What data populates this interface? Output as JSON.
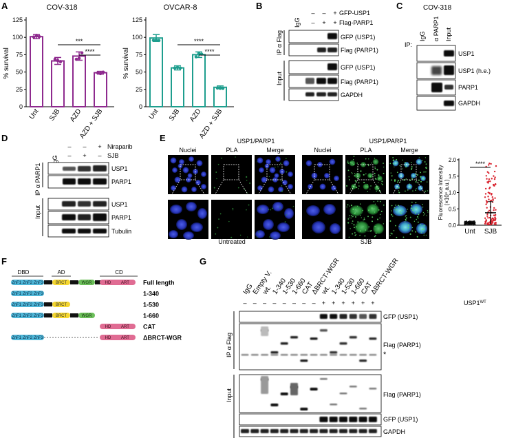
{
  "panels": {
    "A": "A",
    "B": "B",
    "C": "C",
    "D": "D",
    "E": "E",
    "F": "F",
    "G": "G"
  },
  "panelA": {
    "charts": [
      {
        "title": "COV-318",
        "ylabel": "% survival",
        "color": "#8e2a8e",
        "categories": [
          "Unt",
          "SJB",
          "AZD",
          "AZD + SJB"
        ],
        "values": [
          101,
          66,
          73,
          49
        ],
        "errors": [
          3,
          5,
          6,
          2
        ],
        "sig": [
          {
            "text": "***",
            "from": 1,
            "to": 3
          },
          {
            "text": "****",
            "from": 2,
            "to": 3
          }
        ]
      },
      {
        "title": "OVCAR-8",
        "ylabel": "% survival",
        "color": "#1e9e8e",
        "categories": [
          "Unt",
          "SJB",
          "AZD",
          "AZD + SJB"
        ],
        "values": [
          99,
          56,
          75,
          28
        ],
        "errors": [
          5,
          3,
          4,
          2
        ],
        "sig": [
          {
            "text": "****",
            "from": 1,
            "to": 3
          },
          {
            "text": "****",
            "from": 2,
            "to": 3
          }
        ]
      }
    ],
    "ticks": [
      "0",
      "25",
      "50",
      "75",
      "100",
      "125"
    ]
  },
  "panelB": {
    "igg": "IgG",
    "rows": [
      {
        "label": "GFP-USP1",
        "signs": [
          "–",
          "–",
          "+"
        ]
      },
      {
        "label": "Flag-PARP1",
        "signs": [
          "–",
          "+",
          "+"
        ]
      }
    ],
    "ip_label": "IP α Flag",
    "input_label": "Input",
    "ip_blots": [
      "GFP (USP1)",
      "Flag (PARP1)"
    ],
    "input_blots": [
      "GFP (USP1)",
      "Flag (PARP1)",
      "GAPDH"
    ]
  },
  "panelC": {
    "title": "COV-318",
    "ip": "IP:",
    "lanes": [
      "IgG",
      "α PARP1",
      "Input"
    ],
    "blots": [
      "USP1",
      "USP1 (h.e.)",
      "PARP1",
      "GAPDH"
    ]
  },
  "panelD": {
    "igg": "IgG",
    "rows": [
      {
        "label": "Niraparib",
        "signs": [
          "–",
          "–",
          "+"
        ]
      },
      {
        "label": "SJB",
        "signs": [
          "–",
          "+",
          "–"
        ]
      }
    ],
    "ip_label": "IP α PARP1",
    "input_label": "Input",
    "ip_blots": [
      "USP1",
      "PARP1"
    ],
    "input_blots": [
      "USP1",
      "PARP1",
      "Tubulin"
    ]
  },
  "panelE": {
    "group_title": "USP1/PARP1",
    "cols": [
      "Nuclei",
      "PLA",
      "Merge"
    ],
    "conditions": [
      "Untreated",
      "SJB"
    ],
    "chart_data": {
      "type": "scatter",
      "ylabel": "Fluorescence Intensity",
      "ylabel2": "(×10⁴ a.u.)",
      "categories": [
        "Unt",
        "SJB"
      ],
      "ticks": [
        "0.0",
        "0.5",
        "1.0",
        "1.5",
        "2.0"
      ],
      "ylim": [
        0,
        2.0
      ],
      "sig": "****",
      "means": [
        0.06,
        0.38
      ],
      "sd": [
        0.03,
        0.34
      ]
    }
  },
  "panelF": {
    "domains": {
      "dbd": "DBD",
      "ad": "AD",
      "cd": "CD"
    },
    "znf": [
      "ZnF1",
      "ZnF2",
      "ZnF3"
    ],
    "brct": "BRCT",
    "wgr": "WGR",
    "hd": "HD",
    "art": "ART",
    "constructs": [
      "Full length",
      "1-340",
      "1-530",
      "1-660",
      "CAT",
      "ΔBRCT-WGR"
    ]
  },
  "panelG": {
    "lanes": [
      "IgG",
      "Empty V.",
      "wt.",
      "1-340",
      "1-530",
      "1-660",
      "CAT",
      "ΔBRCT-WGR",
      "wt.",
      "1-340",
      "1-530",
      "1-660",
      "CAT",
      "ΔBRCT-WGR"
    ],
    "usp1_signs": [
      "–",
      "–",
      "–",
      "–",
      "–",
      "–",
      "–",
      "–",
      "+",
      "+",
      "+",
      "+",
      "+",
      "+"
    ],
    "usp1_label": "USP1",
    "usp1_sup": "WT",
    "ip_label": "IP α Flag",
    "input_label": "Input",
    "ip_blots": [
      "GFP (USP1)",
      "Flag (PARP1)"
    ],
    "star": "*",
    "input_blots": [
      "Flag (PARP1)",
      "GFP (USP1)",
      "GAPDH"
    ]
  }
}
